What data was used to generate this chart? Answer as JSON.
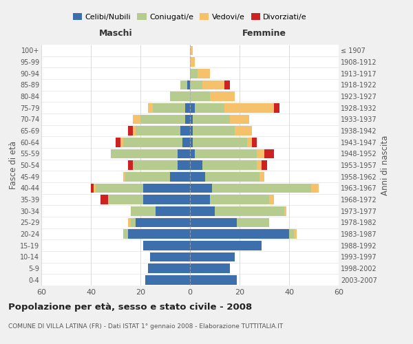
{
  "age_groups": [
    "0-4",
    "5-9",
    "10-14",
    "15-19",
    "20-24",
    "25-29",
    "30-34",
    "35-39",
    "40-44",
    "45-49",
    "50-54",
    "55-59",
    "60-64",
    "65-69",
    "70-74",
    "75-79",
    "80-84",
    "85-89",
    "90-94",
    "95-99",
    "100+"
  ],
  "birth_years": [
    "2003-2007",
    "1998-2002",
    "1993-1997",
    "1988-1992",
    "1983-1987",
    "1978-1982",
    "1973-1977",
    "1968-1972",
    "1963-1967",
    "1958-1962",
    "1953-1957",
    "1948-1952",
    "1943-1947",
    "1938-1942",
    "1933-1937",
    "1928-1932",
    "1923-1927",
    "1918-1922",
    "1913-1917",
    "1908-1912",
    "≤ 1907"
  ],
  "male": {
    "celibi": [
      18,
      17,
      16,
      19,
      25,
      22,
      14,
      19,
      19,
      8,
      5,
      5,
      3,
      4,
      2,
      2,
      0,
      1,
      0,
      0,
      0
    ],
    "coniugati": [
      0,
      0,
      0,
      0,
      2,
      2,
      10,
      14,
      19,
      18,
      18,
      27,
      24,
      18,
      18,
      13,
      8,
      3,
      0,
      0,
      0
    ],
    "vedovi": [
      0,
      0,
      0,
      0,
      0,
      1,
      0,
      0,
      1,
      1,
      0,
      0,
      1,
      1,
      3,
      2,
      0,
      0,
      0,
      0,
      0
    ],
    "divorziati": [
      0,
      0,
      0,
      0,
      0,
      0,
      0,
      3,
      1,
      0,
      2,
      0,
      2,
      2,
      0,
      0,
      0,
      0,
      0,
      0,
      0
    ]
  },
  "female": {
    "nubili": [
      19,
      16,
      18,
      29,
      40,
      19,
      10,
      8,
      9,
      6,
      5,
      2,
      1,
      1,
      1,
      2,
      0,
      0,
      0,
      0,
      0
    ],
    "coniugate": [
      0,
      0,
      0,
      0,
      2,
      13,
      28,
      24,
      40,
      22,
      22,
      25,
      22,
      17,
      15,
      12,
      8,
      5,
      3,
      0,
      0
    ],
    "vedove": [
      0,
      0,
      0,
      0,
      1,
      0,
      1,
      2,
      3,
      2,
      2,
      3,
      2,
      7,
      8,
      20,
      10,
      9,
      5,
      2,
      1
    ],
    "divorziate": [
      0,
      0,
      0,
      0,
      0,
      0,
      0,
      0,
      0,
      0,
      2,
      4,
      2,
      0,
      0,
      2,
      0,
      2,
      0,
      0,
      0
    ]
  },
  "colors": {
    "celibi": "#3d6fad",
    "coniugati": "#b5cc8e",
    "vedovi": "#f5c26b",
    "divorziati": "#cc2222"
  },
  "title": "Popolazione per età, sesso e stato civile - 2008",
  "subtitle": "COMUNE DI VILLA LATINA (FR) - Dati ISTAT 1° gennaio 2008 - Elaborazione TUTTITALIA.IT",
  "xlabel_left": "Maschi",
  "xlabel_right": "Femmine",
  "ylabel_left": "Fasce di età",
  "ylabel_right": "Anni di nascita",
  "xlim": 60,
  "bg_color": "#f0f0f0",
  "plot_bg": "#ffffff"
}
